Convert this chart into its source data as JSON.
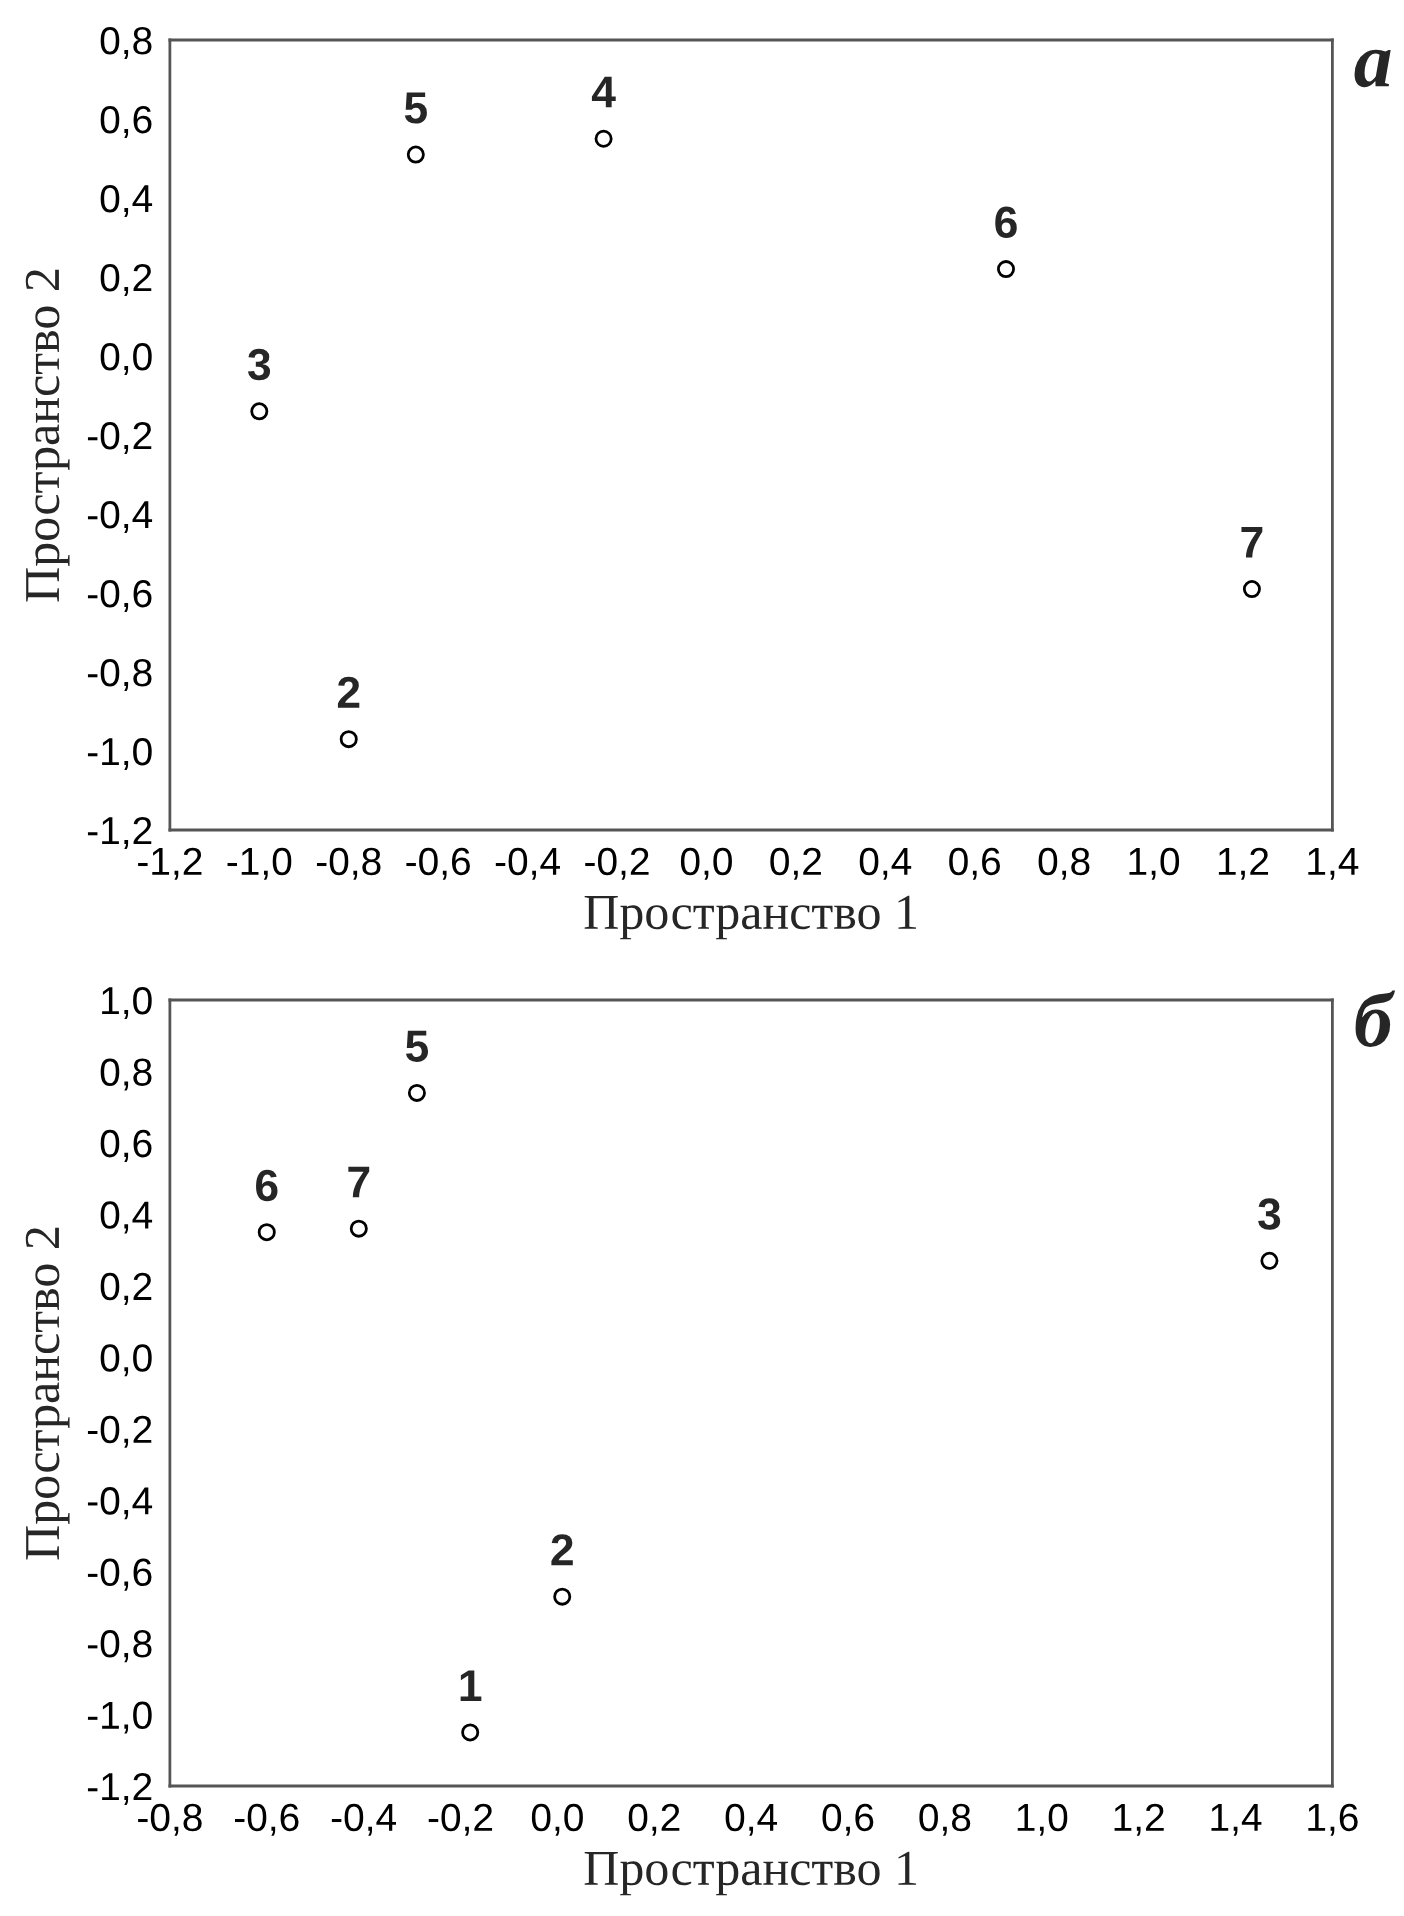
{
  "chart_data": [
    {
      "type": "scatter",
      "title": "а",
      "xlabel": "Пространство 1",
      "ylabel": "Пространство 2",
      "series": [
        {
          "color": "#000000",
          "x": [
            -0.8,
            -1.0,
            -0.23,
            -0.65,
            0.67,
            1.22
          ],
          "values": [
            -0.97,
            -0.14,
            0.55,
            0.51,
            0.22,
            -0.59
          ]
        }
      ],
      "annotations": [
        {
          "text": "2",
          "x": -0.8,
          "y": -0.97
        },
        {
          "text": "3",
          "x": -1.0,
          "y": -0.14
        },
        {
          "text": "4",
          "x": -0.23,
          "y": 0.55
        },
        {
          "text": "5",
          "x": -0.65,
          "y": 0.51
        },
        {
          "text": "6",
          "x": 0.67,
          "y": 0.22
        },
        {
          "text": "7",
          "x": 1.22,
          "y": -0.59
        }
      ],
      "xlim": [
        -1.2,
        1.4
      ],
      "xticks": [
        {
          "value": -1.2,
          "label": "-1,2"
        },
        {
          "value": -1.0,
          "label": "-1,0"
        },
        {
          "value": -0.8,
          "label": "-0,8"
        },
        {
          "value": -0.6,
          "label": "-0,6"
        },
        {
          "value": -0.4,
          "label": "-0,4"
        },
        {
          "value": -0.2,
          "label": "-0,2"
        },
        {
          "value": 0.0,
          "label": "0,0"
        },
        {
          "value": 0.2,
          "label": "0,2"
        },
        {
          "value": 0.4,
          "label": "0,4"
        },
        {
          "value": 0.6,
          "label": "0,6"
        },
        {
          "value": 0.8,
          "label": "0,8"
        },
        {
          "value": 1.0,
          "label": "1,0"
        },
        {
          "value": 1.2,
          "label": "1,2"
        },
        {
          "value": 1.4,
          "label": "1,4"
        }
      ],
      "ylim": [
        -1.2,
        0.8
      ],
      "yticks": [
        {
          "value": -1.2,
          "label": "-1,2"
        },
        {
          "value": -1.0,
          "label": "-1,0"
        },
        {
          "value": -0.8,
          "label": "-0,8"
        },
        {
          "value": -0.6,
          "label": "-0,6"
        },
        {
          "value": -0.4,
          "label": "-0,4"
        },
        {
          "value": -0.2,
          "label": "-0,2"
        },
        {
          "value": 0.0,
          "label": "0,0"
        },
        {
          "value": 0.2,
          "label": "0,2"
        },
        {
          "value": 0.4,
          "label": "0,4"
        },
        {
          "value": 0.6,
          "label": "0,6"
        },
        {
          "value": 0.8,
          "label": "0,8"
        }
      ],
      "marker": "circle",
      "grid": false,
      "legend": false
    },
    {
      "type": "scatter",
      "title": "б",
      "xlabel": "Пространство 1",
      "ylabel": "Пространство 2",
      "series": [
        {
          "color": "#000000",
          "x": [
            -0.18,
            0.01,
            1.47,
            -0.29,
            -0.6,
            -0.41
          ],
          "values": [
            -1.05,
            -0.67,
            0.27,
            0.74,
            0.35,
            0.36
          ]
        }
      ],
      "annotations": [
        {
          "text": "1",
          "x": -0.18,
          "y": -1.05
        },
        {
          "text": "2",
          "x": 0.01,
          "y": -0.67
        },
        {
          "text": "3",
          "x": 1.47,
          "y": 0.27
        },
        {
          "text": "5",
          "x": -0.29,
          "y": 0.74
        },
        {
          "text": "6",
          "x": -0.6,
          "y": 0.35
        },
        {
          "text": "7",
          "x": -0.41,
          "y": 0.36
        }
      ],
      "xlim": [
        -0.8,
        1.6
      ],
      "xticks": [
        {
          "value": -0.8,
          "label": "-0,8"
        },
        {
          "value": -0.6,
          "label": "-0,6"
        },
        {
          "value": -0.4,
          "label": "-0,4"
        },
        {
          "value": -0.2,
          "label": "-0,2"
        },
        {
          "value": 0.0,
          "label": "0,0"
        },
        {
          "value": 0.2,
          "label": "0,2"
        },
        {
          "value": 0.4,
          "label": "0,4"
        },
        {
          "value": 0.6,
          "label": "0,6"
        },
        {
          "value": 0.8,
          "label": "0,8"
        },
        {
          "value": 1.0,
          "label": "1,0"
        },
        {
          "value": 1.2,
          "label": "1,2"
        },
        {
          "value": 1.4,
          "label": "1,4"
        },
        {
          "value": 1.6,
          "label": "1,6"
        }
      ],
      "ylim": [
        -1.2,
        1.0
      ],
      "yticks": [
        {
          "value": -1.2,
          "label": "-1,2"
        },
        {
          "value": -1.0,
          "label": "-1,0"
        },
        {
          "value": -0.8,
          "label": "-0,8"
        },
        {
          "value": -0.6,
          "label": "-0,6"
        },
        {
          "value": -0.4,
          "label": "-0,4"
        },
        {
          "value": -0.2,
          "label": "-0,2"
        },
        {
          "value": 0.0,
          "label": "0,0"
        },
        {
          "value": 0.2,
          "label": "0,2"
        },
        {
          "value": 0.4,
          "label": "0,4"
        },
        {
          "value": 0.6,
          "label": "0,6"
        },
        {
          "value": 0.8,
          "label": "0,8"
        },
        {
          "value": 1.0,
          "label": "1,0"
        }
      ],
      "marker": "circle",
      "grid": false,
      "legend": false
    }
  ]
}
